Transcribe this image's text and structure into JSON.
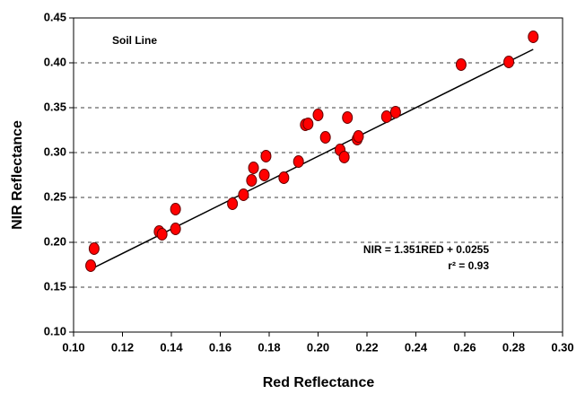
{
  "chart_data": {
    "type": "scatter",
    "title": "Soil Line",
    "x_label": "Red Reflectance",
    "y_label": "NIR Reflectance",
    "annotations": [
      "NIR = 1.351RED + 0.0255",
      "r² = 0.93"
    ],
    "color": "#ff0000",
    "x": [
      0.107,
      0.1084,
      0.135,
      0.1362,
      0.1417,
      0.1417,
      0.165,
      0.1695,
      0.1728,
      0.1736,
      0.178,
      0.1787,
      0.186,
      0.192,
      0.1948,
      0.1959,
      0.2,
      0.203,
      0.209,
      0.2107,
      0.212,
      0.216,
      0.2165,
      0.228,
      0.2317,
      0.2585,
      0.278,
      0.288
    ],
    "values": [
      0.174,
      0.193,
      0.212,
      0.209,
      0.237,
      0.215,
      0.243,
      0.253,
      0.269,
      0.283,
      0.275,
      0.296,
      0.272,
      0.29,
      0.331,
      0.332,
      0.342,
      0.317,
      0.303,
      0.295,
      0.339,
      0.315,
      0.318,
      0.34,
      0.345,
      0.398,
      0.401,
      0.429
    ],
    "trendline": {
      "x": [
        0.107,
        0.288
      ],
      "values": [
        0.17,
        0.415
      ]
    },
    "xlim": [
      0.1,
      0.3
    ],
    "xticks": [
      {
        "value": 0.1,
        "label": "0.10"
      },
      0.12,
      0.14,
      0.16,
      0.18,
      {
        "value": 0.2,
        "label": "0.20"
      },
      0.22,
      0.24,
      0.26,
      0.28,
      {
        "value": 0.3,
        "label": "0.30"
      }
    ],
    "ylim": [
      0.1,
      0.45
    ],
    "yticks": [
      {
        "value": 0.1,
        "label": "0.10"
      },
      0.15,
      {
        "value": 0.2,
        "label": "0.20"
      },
      0.25,
      {
        "value": 0.3,
        "label": "0.30"
      },
      0.35,
      {
        "value": 0.4,
        "label": "0.40"
      },
      0.45
    ],
    "grid": true
  }
}
